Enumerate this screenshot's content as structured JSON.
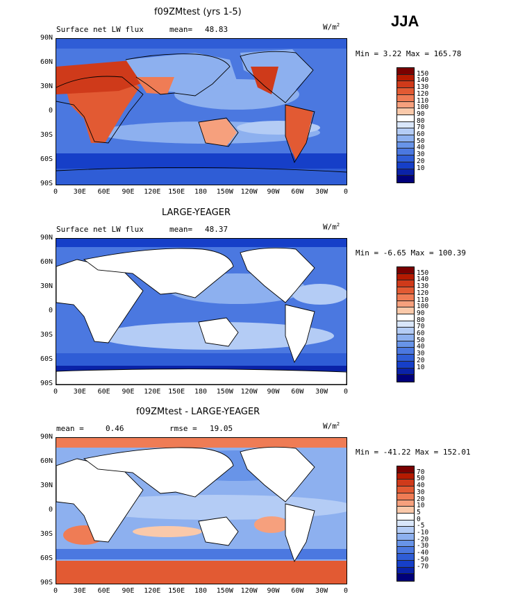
{
  "header": {
    "season": "JJA"
  },
  "unit_prefix": "W/m",
  "unit_exp": "2",
  "x_ticks": [
    "0",
    "30E",
    "60E",
    "90E",
    "120E",
    "150E",
    "180",
    "150W",
    "120W",
    "90W",
    "60W",
    "30W",
    "0"
  ],
  "y_ticks": [
    "90N",
    "60N",
    "30N",
    "0",
    "30S",
    "60S",
    "90S"
  ],
  "panels": [
    {
      "title": "f09ZMtest (yrs 1-5)",
      "variable": "Surface net LW flux",
      "stat1_label": "mean=",
      "stat1_value": "48.83",
      "stat2_label": "",
      "stat2_value": "",
      "minmax": "Min =   3.22 Max = 165.78",
      "colorbar_labels": [
        "150",
        "140",
        "130",
        "120",
        "110",
        "100",
        "90",
        "80",
        "70",
        "60",
        "50",
        "40",
        "30",
        "20",
        "10"
      ],
      "colors": [
        "#7a0000",
        "#b51a00",
        "#cf3a1a",
        "#e25a33",
        "#ef7c55",
        "#f6a07d",
        "#fac9aa",
        "#ffffff",
        "#d9e6fa",
        "#b4ccf5",
        "#8db0ef",
        "#6894e8",
        "#4b78e0",
        "#2f5dd6",
        "#163fc8",
        "#0a22a8",
        "#00007a"
      ]
    },
    {
      "title": "LARGE-YEAGER",
      "variable": "Surface net LW flux",
      "stat1_label": "mean=",
      "stat1_value": "48.37",
      "stat2_label": "",
      "stat2_value": "",
      "minmax": "Min =  -6.65 Max = 100.39",
      "colorbar_labels": [
        "150",
        "140",
        "130",
        "120",
        "110",
        "100",
        "90",
        "80",
        "70",
        "60",
        "50",
        "40",
        "30",
        "20",
        "10"
      ],
      "colors": [
        "#7a0000",
        "#b51a00",
        "#cf3a1a",
        "#e25a33",
        "#ef7c55",
        "#f6a07d",
        "#fac9aa",
        "#ffffff",
        "#d9e6fa",
        "#b4ccf5",
        "#8db0ef",
        "#6894e8",
        "#4b78e0",
        "#2f5dd6",
        "#163fc8",
        "#0a22a8",
        "#00007a"
      ]
    },
    {
      "title": "f09ZMtest - LARGE-YEAGER",
      "variable": "",
      "stat1_label": "mean =",
      "stat1_value": "0.46",
      "stat2_label": "rmse =",
      "stat2_value": "19.05",
      "minmax": "Min = -41.22 Max = 152.01",
      "colorbar_labels": [
        "70",
        "50",
        "40",
        "30",
        "20",
        "10",
        "5",
        "0",
        "-5",
        "-10",
        "-20",
        "-30",
        "-40",
        "-50",
        "-70"
      ],
      "colors": [
        "#7a0000",
        "#b51a00",
        "#cf3a1a",
        "#e25a33",
        "#ef7c55",
        "#f6a07d",
        "#fac9aa",
        "#ffffff",
        "#d9e6fa",
        "#b4ccf5",
        "#8db0ef",
        "#6894e8",
        "#4b78e0",
        "#2f5dd6",
        "#163fc8",
        "#0a22a8",
        "#00007a"
      ]
    }
  ],
  "chart_data": [
    {
      "type": "heatmap",
      "title": "f09ZMtest (yrs 1-5)",
      "subtitle": "Surface net LW flux",
      "units": "W/m2",
      "season": "JJA",
      "mean": 48.83,
      "min": 3.22,
      "max": 165.78,
      "contour_levels": [
        10,
        20,
        30,
        40,
        50,
        60,
        70,
        80,
        90,
        100,
        110,
        120,
        130,
        140,
        150
      ],
      "x_ticks": [
        "0",
        "30E",
        "60E",
        "90E",
        "120E",
        "150E",
        "180",
        "150W",
        "120W",
        "90W",
        "60W",
        "30W",
        "0"
      ],
      "y_ticks": [
        "90N",
        "60N",
        "30N",
        "0",
        "30S",
        "60S",
        "90S"
      ],
      "xlim": [
        0,
        360
      ],
      "ylim": [
        -90,
        90
      ]
    },
    {
      "type": "heatmap",
      "title": "LARGE-YEAGER",
      "subtitle": "Surface net LW flux",
      "units": "W/m2",
      "season": "JJA",
      "mean": 48.37,
      "min": -6.65,
      "max": 100.39,
      "contour_levels": [
        10,
        20,
        30,
        40,
        50,
        60,
        70,
        80,
        90,
        100,
        110,
        120,
        130,
        140,
        150
      ],
      "x_ticks": [
        "0",
        "30E",
        "60E",
        "90E",
        "120E",
        "150E",
        "180",
        "150W",
        "120W",
        "90W",
        "60W",
        "30W",
        "0"
      ],
      "y_ticks": [
        "90N",
        "60N",
        "30N",
        "0",
        "30S",
        "60S",
        "90S"
      ],
      "xlim": [
        0,
        360
      ],
      "ylim": [
        -90,
        90
      ]
    },
    {
      "type": "heatmap",
      "title": "f09ZMtest - LARGE-YEAGER",
      "units": "W/m2",
      "season": "JJA",
      "mean": 0.46,
      "rmse": 19.05,
      "min": -41.22,
      "max": 152.01,
      "contour_levels": [
        -70,
        -50,
        -40,
        -30,
        -20,
        -10,
        -5,
        0,
        5,
        10,
        20,
        30,
        40,
        50,
        70
      ],
      "x_ticks": [
        "0",
        "30E",
        "60E",
        "90E",
        "120E",
        "150E",
        "180",
        "150W",
        "120W",
        "90W",
        "60W",
        "30W",
        "0"
      ],
      "y_ticks": [
        "90N",
        "60N",
        "30N",
        "0",
        "30S",
        "60S",
        "90S"
      ],
      "xlim": [
        0,
        360
      ],
      "ylim": [
        -90,
        90
      ]
    }
  ]
}
